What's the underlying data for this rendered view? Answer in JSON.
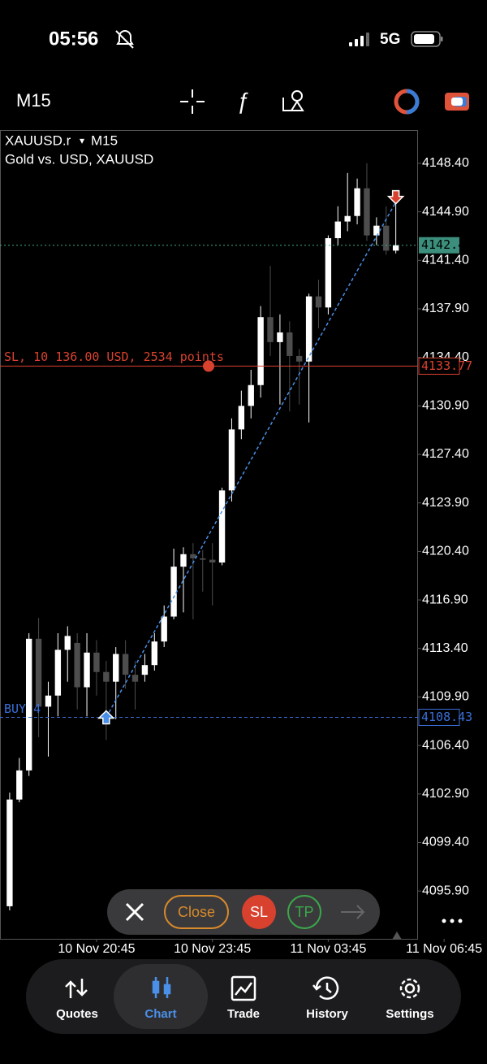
{
  "status_bar": {
    "time": "05:56",
    "network": "5G"
  },
  "toolbar": {
    "timeframe": "M15"
  },
  "chart_data": {
    "type": "candlestick",
    "symbol": "XAUUSD.r",
    "timeframe": "M15",
    "description": "Gold vs. USD, XAUUSD",
    "up_color": "#ffffff",
    "down_color": "#4d4d4d",
    "open": [
      4094.8,
      4102.5,
      4104.6,
      4114.1,
      4109.2,
      4110.0,
      4113.3,
      4113.8,
      4110.6,
      4113.1,
      4111.7,
      4111.0,
      4113.0,
      4111.5,
      4111.5,
      4112.2,
      4113.9,
      4115.7,
      4119.3,
      4120.2,
      4119.9,
      4119.8,
      4119.6,
      4124.8,
      4129.2,
      4130.9,
      4132.4,
      4137.3,
      4135.5,
      4136.2,
      4134.5,
      4134.1,
      4138.8,
      4138.0,
      4143.0,
      4144.2,
      4144.6,
      4146.6,
      4143.2,
      4143.9,
      4142.1
    ],
    "high": [
      4103.0,
      4105.5,
      4114.5,
      4115.6,
      4111.0,
      4114.5,
      4115.0,
      4114.5,
      4114.5,
      4114.0,
      4112.5,
      4113.5,
      4114.0,
      4112.5,
      4113.0,
      4114.5,
      4116.5,
      4120.6,
      4120.7,
      4121.0,
      4120.5,
      4121.0,
      4125.0,
      4130.0,
      4132.0,
      4133.5,
      4138.1,
      4141.0,
      4137.5,
      4137.0,
      4135.0,
      4139.0,
      4140.0,
      4143.2,
      4145.3,
      4147.7,
      4147.3,
      4148.4,
      4144.5,
      4145.3,
      4145.5
    ],
    "low": [
      4094.5,
      4102.3,
      4104.2,
      4107.0,
      4105.6,
      4108.5,
      4111.0,
      4109.0,
      4108.5,
      4110.0,
      4106.8,
      4108.3,
      4110.5,
      4109.0,
      4111.0,
      4111.8,
      4113.5,
      4115.5,
      4116.0,
      4115.5,
      4117.5,
      4116.5,
      4119.4,
      4124.0,
      4128.5,
      4130.0,
      4131.5,
      4134.5,
      4131.0,
      4130.5,
      4131.0,
      4129.7,
      4136.5,
      4137.5,
      4142.5,
      4143.5,
      4144.0,
      4142.8,
      4142.5,
      4141.8,
      4141.9
    ],
    "close": [
      4102.5,
      4104.6,
      4114.1,
      4109.2,
      4110.0,
      4113.3,
      4114.3,
      4110.6,
      4113.1,
      4111.7,
      4111.0,
      4113.0,
      4111.5,
      4111.0,
      4112.2,
      4113.9,
      4115.7,
      4119.3,
      4120.2,
      4119.9,
      4119.8,
      4119.6,
      4124.8,
      4129.2,
      4130.9,
      4132.4,
      4137.3,
      4135.5,
      4136.2,
      4134.5,
      4134.1,
      4138.8,
      4138.0,
      4143.0,
      4144.2,
      4144.6,
      4146.6,
      4143.2,
      4143.9,
      4142.1,
      4142.49
    ],
    "xlim": [
      -1,
      42.3
    ],
    "xticks": [
      {
        "value": 9,
        "label": "10 Nov 20:45"
      },
      {
        "value": 21,
        "label": "10 Nov 23:45"
      },
      {
        "value": 33,
        "label": "11 Nov 03:45"
      },
      {
        "value": 45,
        "label": "11 Nov 06:45"
      }
    ],
    "ylim": [
      4092.45,
      4150.8
    ],
    "yticks": [
      {
        "value": 4148.4,
        "label": "4148.40"
      },
      {
        "value": 4144.9,
        "label": "4144.90"
      },
      {
        "value": 4141.4,
        "label": "4141.40"
      },
      {
        "value": 4137.9,
        "label": "4137.90"
      },
      {
        "value": 4134.4,
        "label": "4134.40"
      },
      {
        "value": 4130.9,
        "label": "4130.90"
      },
      {
        "value": 4127.4,
        "label": "4127.40"
      },
      {
        "value": 4123.9,
        "label": "4123.90"
      },
      {
        "value": 4120.4,
        "label": "4120.40"
      },
      {
        "value": 4116.9,
        "label": "4116.90"
      },
      {
        "value": 4113.4,
        "label": "4113.40"
      },
      {
        "value": 4109.9,
        "label": "4109.90"
      },
      {
        "value": 4106.4,
        "label": "4106.40"
      },
      {
        "value": 4102.9,
        "label": "4102.90"
      },
      {
        "value": 4099.4,
        "label": "4099.40"
      },
      {
        "value": 4095.9,
        "label": "4095.90"
      }
    ],
    "current_price": 4142.49,
    "sl_price": 4133.77,
    "sl_label": "SL, 10 136.00 USD, 2534 points",
    "entry_price": 4108.43,
    "entry_label": "BUY 4",
    "entry_index": 10,
    "exit_index": 40,
    "exit_price": 4145.6
  },
  "order_bar": {
    "close": "Close",
    "sl": "SL",
    "tp": "TP"
  },
  "nav": {
    "items": [
      "Quotes",
      "Chart",
      "Trade",
      "History",
      "Settings"
    ],
    "active": 1
  }
}
